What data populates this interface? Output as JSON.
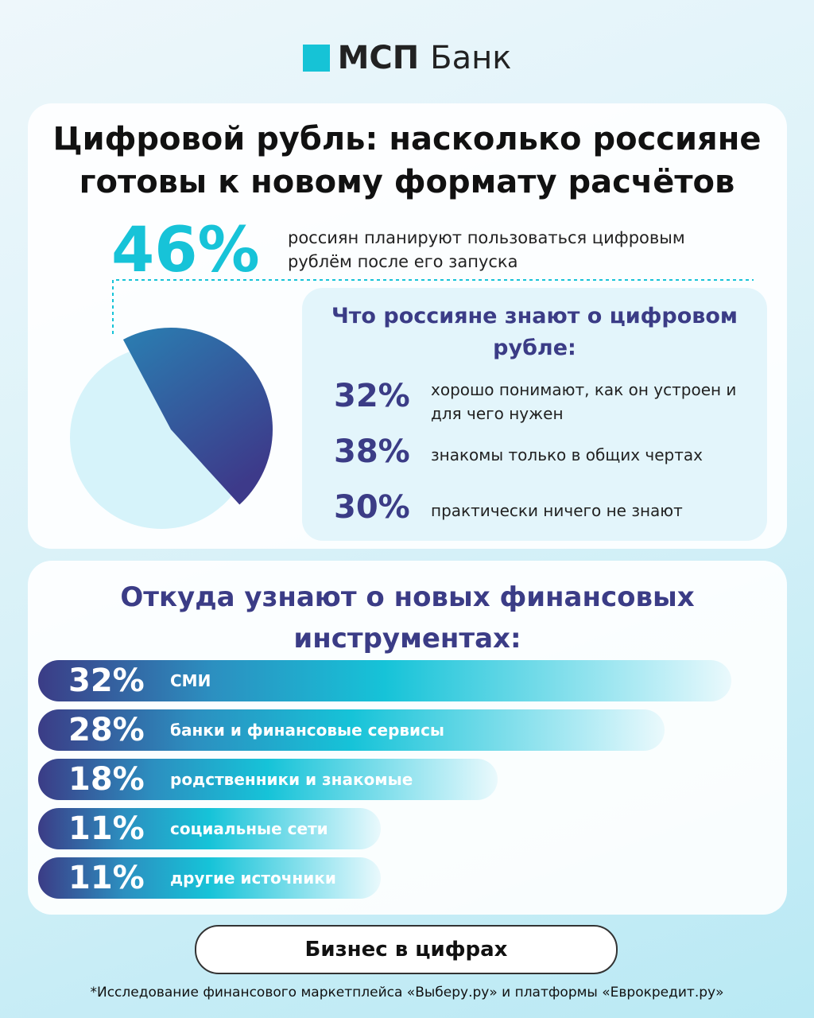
{
  "logo": {
    "brand": "МСП",
    "suffix": "Банк"
  },
  "title": "Цифровой рубль: насколько россияне готовы к новому формату расчётов",
  "headline": {
    "value": 46,
    "label": "46%",
    "text": "россиян планируют пользоваться цифровым рублём после его запуска"
  },
  "knowledge": {
    "title": "Что россияне знают о цифровом рубле:",
    "items": [
      {
        "value": 32,
        "label": "32%",
        "text": "хорошо понимают, как он устроен и для чего нужен"
      },
      {
        "value": 38,
        "label": "38%",
        "text": "знакомы только в общих чертах"
      },
      {
        "value": 30,
        "label": "30%",
        "text": "практически ничего не знают"
      }
    ]
  },
  "sources": {
    "title": "Откуда узнают о новых финансовых инструментах:",
    "items": [
      {
        "value": 32,
        "label": "32%",
        "text": "СМИ"
      },
      {
        "value": 28,
        "label": "28%",
        "text": "банки и финансовые сервисы"
      },
      {
        "value": 18,
        "label": "18%",
        "text": "родственники и знакомые"
      },
      {
        "value": 11,
        "label": "11%",
        "text": "социальные сети"
      },
      {
        "value": 11,
        "label": "11%",
        "text": "другие источники"
      }
    ]
  },
  "button": "Бизнес в цифрах",
  "footnote": "*Исследование финансового маркетплейса «Выберу.ру» и платформы «Еврокредит.ру»"
}
